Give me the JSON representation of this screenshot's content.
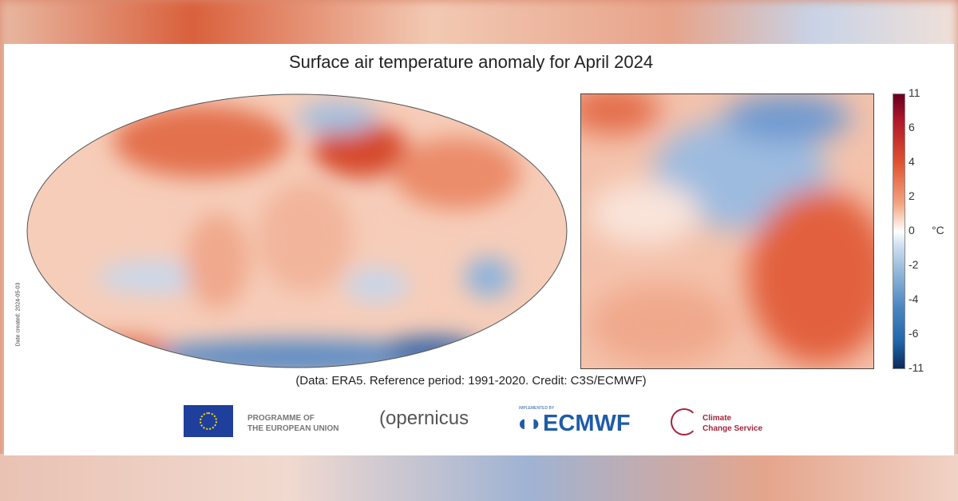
{
  "title": "Surface air temperature anomaly for April 2024",
  "credit": "(Data: ERA5.  Reference period: 1991-2020.  Credit: C3S/ECMWF)",
  "date_created": "Date created: 2024-05-03",
  "colorbar": {
    "unit": "°C",
    "ticks": [
      "11",
      "6",
      "4",
      "2",
      "0",
      "-2",
      "-4",
      "-6",
      "-11"
    ],
    "colors": [
      "#67001f",
      "#b2182b",
      "#f4a582",
      "#ffffff",
      "#92b7d9",
      "#2166ac",
      "#0b2a5a"
    ]
  },
  "logos": {
    "eu_line1": "PROGRAMME OF",
    "eu_line2": "THE EUROPEAN UNION",
    "copernicus": "opernicus",
    "ecmwf_small": "IMPLEMENTED BY",
    "ecmwf": "ECMWF",
    "c3s_line1": "Climate",
    "c3s_line2": "Change Service"
  }
}
